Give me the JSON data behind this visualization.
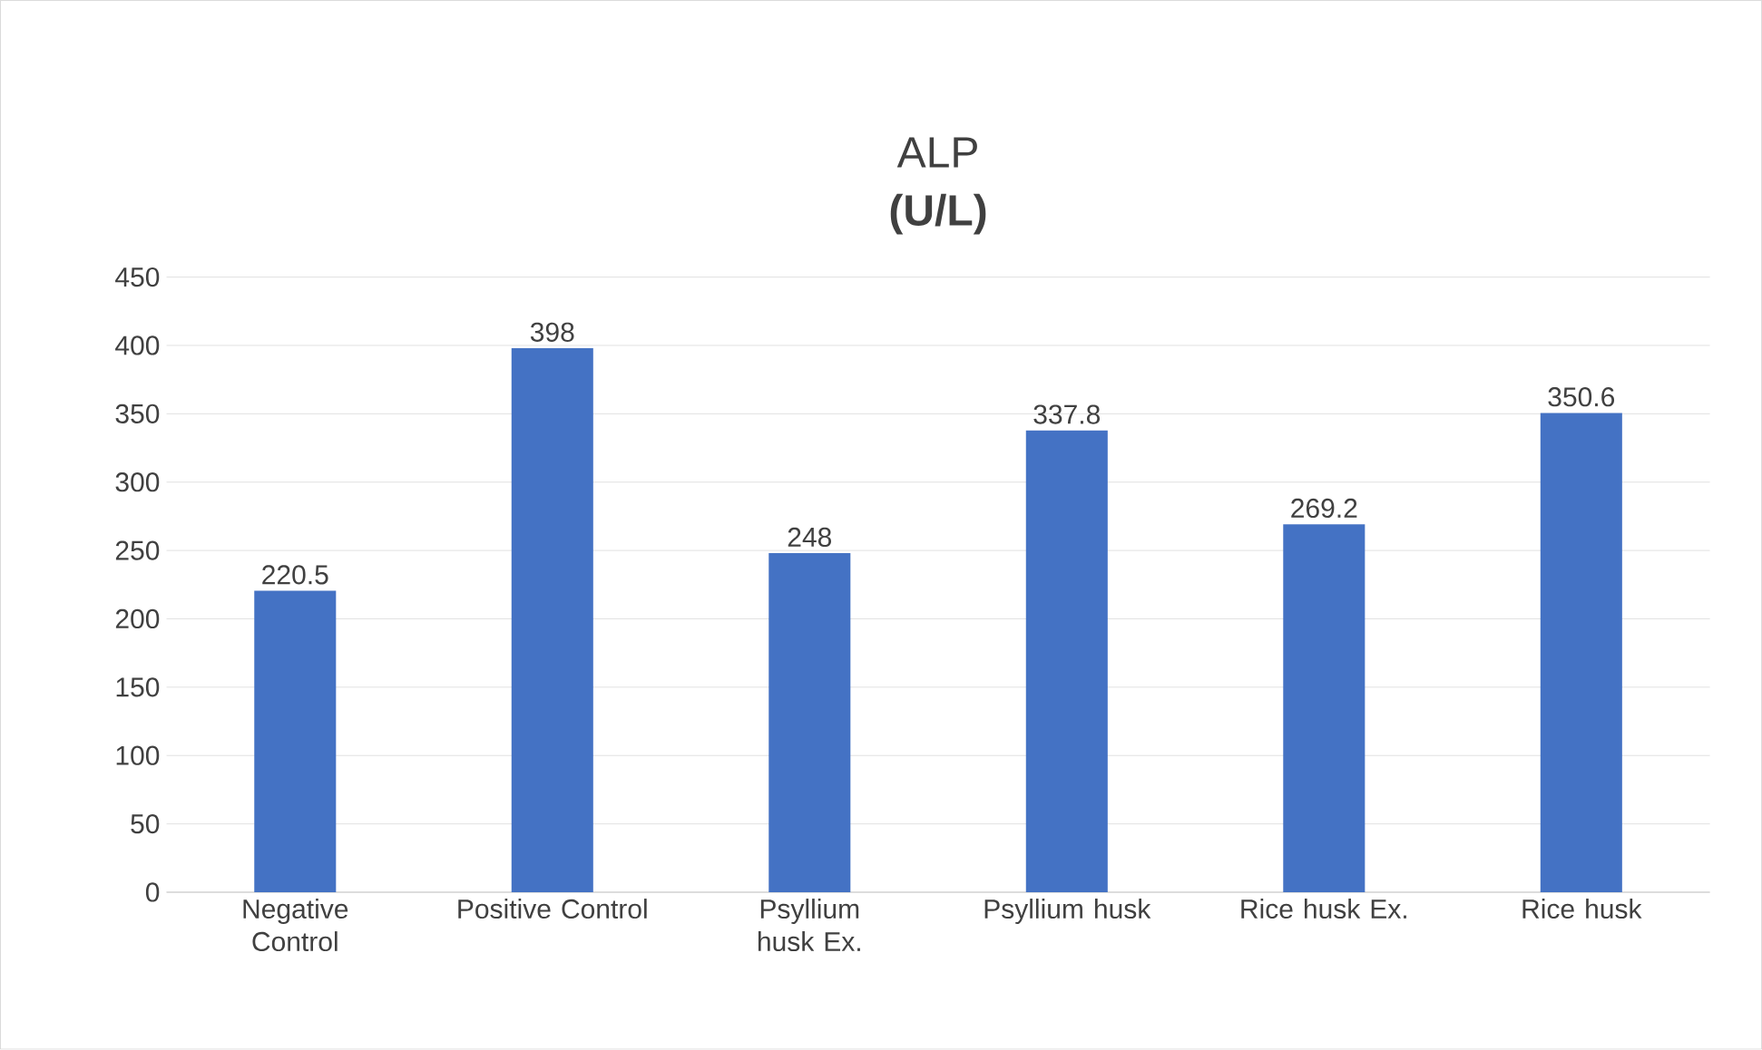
{
  "chart_data": {
    "type": "bar",
    "title": "ALP",
    "subtitle": "(U/L)",
    "categories": [
      "Negative Control",
      "Positive Control",
      "Psyllium husk Ex.",
      "Psyllium husk",
      "Rice husk Ex.",
      "Rice husk"
    ],
    "values": [
      220.5,
      398,
      248,
      337.8,
      269.2,
      350.6
    ],
    "color": "#4472c4",
    "ylim": [
      0,
      450
    ],
    "yticks": [
      0,
      50,
      100,
      150,
      200,
      250,
      300,
      350,
      400,
      450
    ],
    "grid": "y",
    "data_labels": true
  }
}
